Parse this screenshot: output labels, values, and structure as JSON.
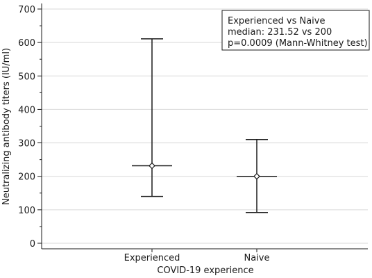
{
  "chart_data": {
    "type": "scatter",
    "title": "",
    "xlabel": "COVID-19 experience",
    "ylabel": "Neutralizing antibody titers (IU/ml)",
    "categories": [
      "Experienced",
      "Naive"
    ],
    "ylim": [
      0,
      700
    ],
    "yticks": [
      0,
      100,
      200,
      300,
      400,
      500,
      600,
      700
    ],
    "grid": true,
    "series": [
      {
        "median": [
          231.52,
          200
        ],
        "lower": [
          140,
          92
        ],
        "upper": [
          611,
          310
        ]
      }
    ],
    "annotation": {
      "placement": "top-right",
      "lines": [
        "Experienced vs Naive",
        "median: 231.52 vs 200",
        "p=0.0009 (Mann-Whitney test)"
      ]
    }
  }
}
